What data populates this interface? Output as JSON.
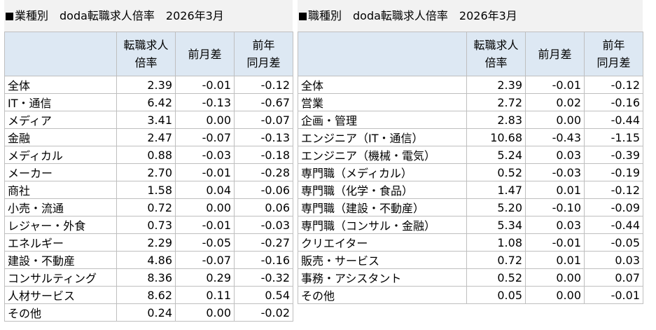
{
  "left": {
    "title": "業種別　doda転職求人倍率　2026年3月",
    "headers": {
      "ratio_line1": "転職求人",
      "ratio_line2": "倍率",
      "mom": "前月差",
      "yoy_line1": "前年",
      "yoy_line2": "同月差"
    },
    "rows": [
      {
        "label": "全体",
        "ratio": "2.39",
        "mom": "-0.01",
        "yoy": "-0.12"
      },
      {
        "label": "IT・通信",
        "ratio": "6.42",
        "mom": "-0.13",
        "yoy": "-0.67"
      },
      {
        "label": "メディア",
        "ratio": "3.41",
        "mom": "0.00",
        "yoy": "-0.07"
      },
      {
        "label": "金融",
        "ratio": "2.47",
        "mom": "-0.07",
        "yoy": "-0.13"
      },
      {
        "label": "メディカル",
        "ratio": "0.88",
        "mom": "-0.03",
        "yoy": "-0.18"
      },
      {
        "label": "メーカー",
        "ratio": "2.70",
        "mom": "-0.01",
        "yoy": "-0.28"
      },
      {
        "label": "商社",
        "ratio": "1.58",
        "mom": "0.04",
        "yoy": "-0.06"
      },
      {
        "label": "小売・流通",
        "ratio": "0.72",
        "mom": "0.00",
        "yoy": "0.06"
      },
      {
        "label": "レジャー・外食",
        "ratio": "0.73",
        "mom": "-0.01",
        "yoy": "-0.03"
      },
      {
        "label": "エネルギー",
        "ratio": "2.29",
        "mom": "-0.05",
        "yoy": "-0.27"
      },
      {
        "label": "建設・不動産",
        "ratio": "4.86",
        "mom": "-0.07",
        "yoy": "-0.16"
      },
      {
        "label": "コンサルティング",
        "ratio": "8.36",
        "mom": "0.29",
        "yoy": "-0.32"
      },
      {
        "label": "人材サービス",
        "ratio": "8.62",
        "mom": "0.11",
        "yoy": "0.54"
      },
      {
        "label": "その他",
        "ratio": "0.24",
        "mom": "0.00",
        "yoy": "-0.02"
      }
    ]
  },
  "right": {
    "title": "職種別　doda転職求人倍率　2026年3月",
    "headers": {
      "ratio_line1": "転職求人",
      "ratio_line2": "倍率",
      "mom": "前月差",
      "yoy_line1": "前年",
      "yoy_line2": "同月差"
    },
    "rows": [
      {
        "label": "全体",
        "ratio": "2.39",
        "mom": "-0.01",
        "yoy": "-0.12"
      },
      {
        "label": "営業",
        "ratio": "2.72",
        "mom": "0.02",
        "yoy": "-0.16"
      },
      {
        "label": "企画・管理",
        "ratio": "2.83",
        "mom": "0.00",
        "yoy": "-0.44"
      },
      {
        "label": "エンジニア（IT・通信）",
        "ratio": "10.68",
        "mom": "-0.43",
        "yoy": "-1.15"
      },
      {
        "label": "エンジニア（機械・電気）",
        "ratio": "5.24",
        "mom": "0.03",
        "yoy": "-0.39"
      },
      {
        "label": "専門職（メディカル）",
        "ratio": "0.52",
        "mom": "-0.03",
        "yoy": "-0.19"
      },
      {
        "label": "専門職（化学・食品）",
        "ratio": "1.47",
        "mom": "0.01",
        "yoy": "-0.12"
      },
      {
        "label": "専門職（建設・不動産）",
        "ratio": "5.20",
        "mom": "-0.10",
        "yoy": "-0.09"
      },
      {
        "label": "専門職（コンサル・金融）",
        "ratio": "5.34",
        "mom": "0.03",
        "yoy": "-0.44"
      },
      {
        "label": "クリエイター",
        "ratio": "1.08",
        "mom": "-0.01",
        "yoy": "-0.05"
      },
      {
        "label": "販売・サービス",
        "ratio": "0.72",
        "mom": "0.01",
        "yoy": "0.03"
      },
      {
        "label": "事務・アシスタント",
        "ratio": "0.52",
        "mom": "0.00",
        "yoy": "0.07"
      },
      {
        "label": "その他",
        "ratio": "0.05",
        "mom": "0.00",
        "yoy": "-0.01"
      }
    ]
  }
}
